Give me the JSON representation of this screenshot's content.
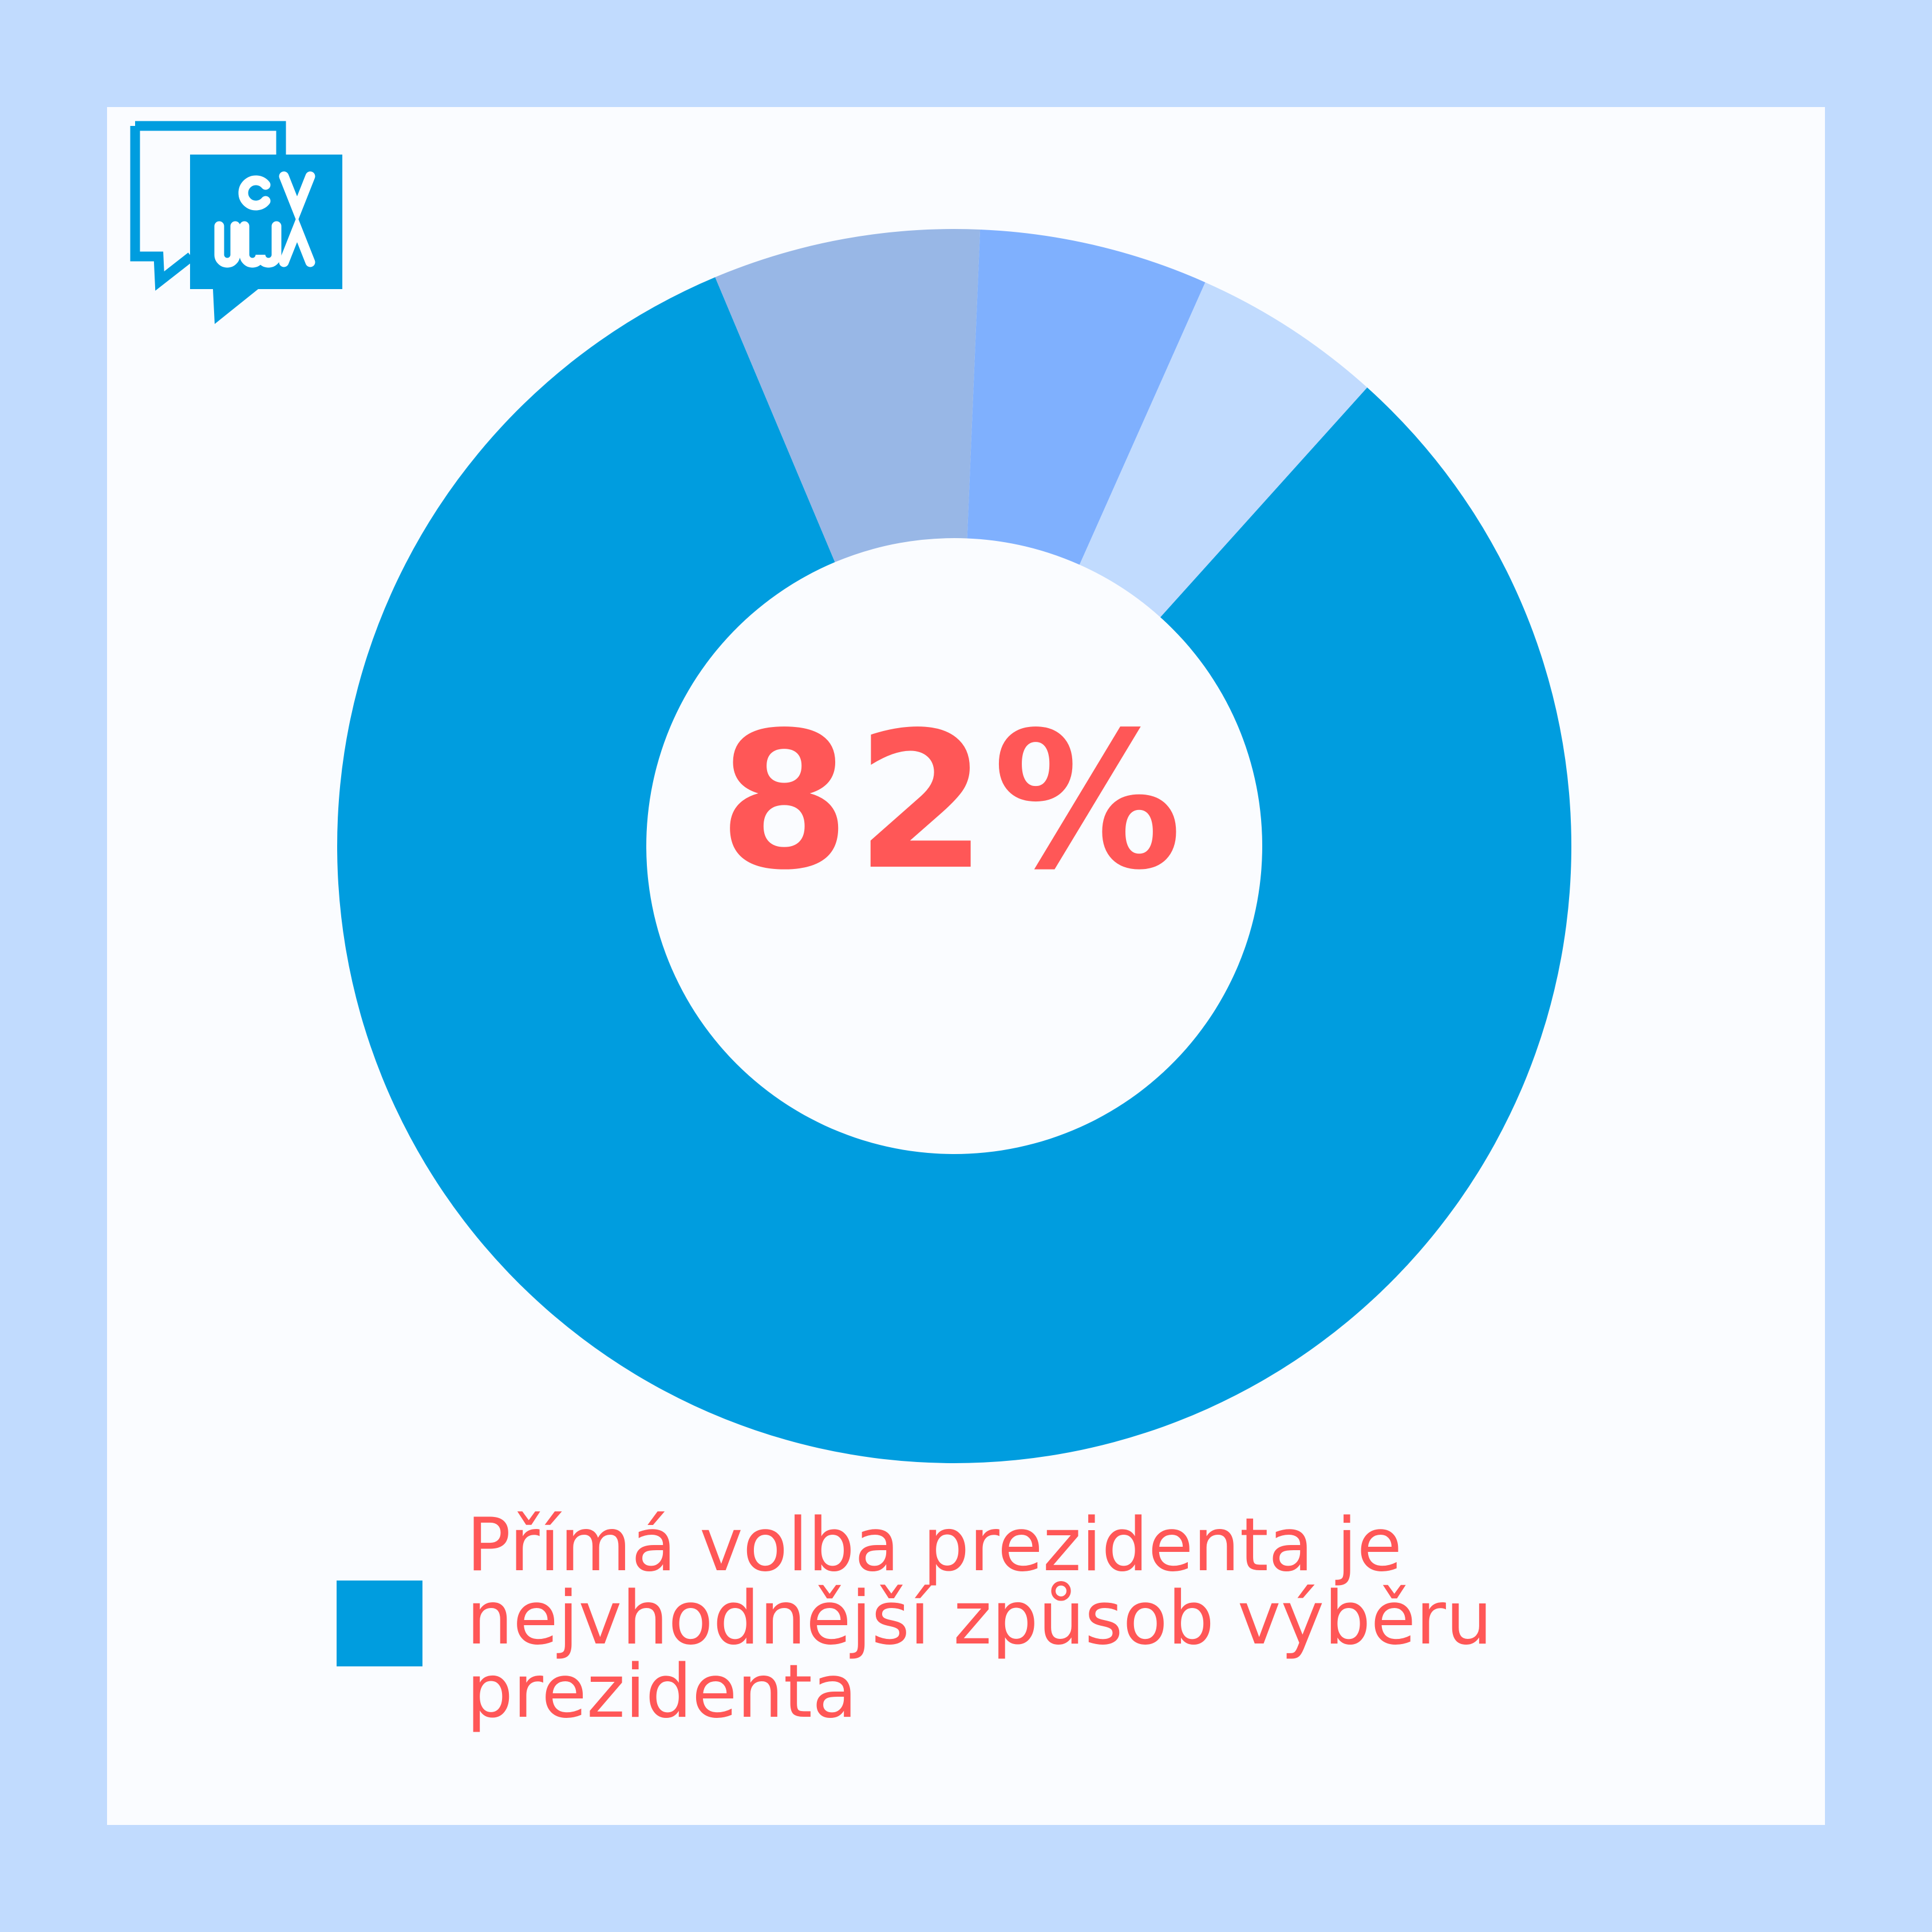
{
  "logo": {
    "alt": "CVVM",
    "color": "#009ddf"
  },
  "chart_data": {
    "type": "donut",
    "center_label": "82%",
    "slices": [
      {
        "value": 82,
        "color": "#009ddf",
        "label": "Přímá volba prezidenta je nejvhodnější způsob výběru prezidenta"
      },
      {
        "value": 7,
        "color": "#98b7e6"
      },
      {
        "value": 6,
        "color": "#7fb0fe"
      },
      {
        "value": 5,
        "color": "#c1dbfe"
      }
    ],
    "start_angle_deg": 42,
    "legend": {
      "position": "bottom"
    }
  }
}
